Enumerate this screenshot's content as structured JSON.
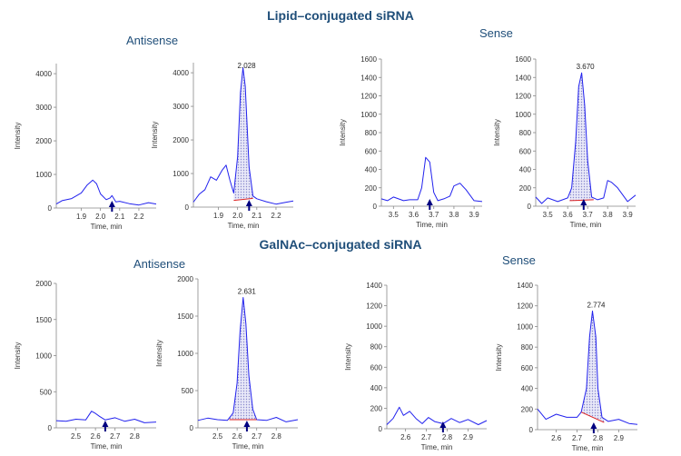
{
  "sections": [
    {
      "title": "Lipid–conjugated siRNA",
      "groups": [
        "Antisense",
        "Sense"
      ]
    },
    {
      "title": "GalNAc–conjugated siRNA",
      "groups": [
        "Antisense",
        "Sense"
      ]
    }
  ],
  "colors": {
    "trace": "#2222ee",
    "baseline": "#dd2222",
    "marker": "#000080",
    "title": "#1f4e79",
    "fill": "#8888cc"
  },
  "chart_data": [
    {
      "type": "line",
      "panel": "lipid-antisense-blank",
      "xlabel": "Time, min",
      "ylabel": "Intensity",
      "xlim": [
        1.77,
        2.29
      ],
      "ylim": [
        0,
        4300
      ],
      "xticks": [
        1.9,
        2.0,
        2.1,
        2.2
      ],
      "yticks": [
        0,
        1000,
        2000,
        3000,
        4000
      ],
      "marker_x": 2.06,
      "peak_label": "",
      "x": [
        1.77,
        1.8,
        1.85,
        1.9,
        1.93,
        1.96,
        1.98,
        2.0,
        2.03,
        2.05,
        2.06,
        2.08,
        2.1,
        2.15,
        2.2,
        2.25,
        2.29
      ],
      "y": [
        120,
        220,
        280,
        450,
        680,
        830,
        720,
        420,
        250,
        300,
        370,
        180,
        200,
        130,
        90,
        160,
        120
      ]
    },
    {
      "type": "line",
      "panel": "lipid-antisense-sample",
      "xlabel": "Time, min",
      "ylabel": "Intensity",
      "xlim": [
        1.77,
        2.29
      ],
      "ylim": [
        0,
        4300
      ],
      "xticks": [
        1.9,
        2.0,
        2.1,
        2.2
      ],
      "yticks": [
        0,
        1000,
        2000,
        3000,
        4000
      ],
      "marker_x": 2.06,
      "peak_label": "2.028",
      "shade": [
        1.98,
        2.08
      ],
      "baseline": [
        [
          1.98,
          200
        ],
        [
          2.08,
          260
        ]
      ],
      "x": [
        1.77,
        1.8,
        1.83,
        1.86,
        1.89,
        1.92,
        1.94,
        1.96,
        1.98,
        2.0,
        2.015,
        2.028,
        2.04,
        2.06,
        2.08,
        2.1,
        2.15,
        2.2,
        2.25,
        2.29
      ],
      "y": [
        150,
        380,
        520,
        900,
        800,
        1100,
        1250,
        800,
        420,
        1500,
        3400,
        4150,
        3600,
        1200,
        330,
        250,
        160,
        90,
        140,
        180
      ]
    },
    {
      "type": "line",
      "panel": "lipid-sense-blank",
      "xlabel": "Time, min",
      "ylabel": "Intensity",
      "xlim": [
        3.44,
        3.94
      ],
      "ylim": [
        0,
        1600
      ],
      "xticks": [
        3.5,
        3.6,
        3.7,
        3.8,
        3.9
      ],
      "yticks": [
        0,
        200,
        400,
        600,
        800,
        1000,
        1200,
        1400,
        1600
      ],
      "marker_x": 3.68,
      "peak_label": "",
      "x": [
        3.44,
        3.47,
        3.5,
        3.55,
        3.58,
        3.62,
        3.64,
        3.66,
        3.68,
        3.7,
        3.72,
        3.75,
        3.78,
        3.8,
        3.83,
        3.86,
        3.9,
        3.94
      ],
      "y": [
        80,
        60,
        100,
        60,
        70,
        70,
        200,
        530,
        480,
        150,
        60,
        80,
        110,
        220,
        250,
        180,
        60,
        50
      ]
    },
    {
      "type": "line",
      "panel": "lipid-sense-sample",
      "xlabel": "Time, min",
      "ylabel": "Intensity",
      "xlim": [
        3.44,
        3.94
      ],
      "ylim": [
        0,
        1600
      ],
      "xticks": [
        3.5,
        3.6,
        3.7,
        3.8,
        3.9
      ],
      "yticks": [
        0,
        200,
        400,
        600,
        800,
        1000,
        1200,
        1400,
        1600
      ],
      "marker_x": 3.68,
      "peak_label": "3.670",
      "shade": [
        3.61,
        3.73
      ],
      "baseline": [
        [
          3.61,
          60
        ],
        [
          3.73,
          70
        ]
      ],
      "x": [
        3.44,
        3.47,
        3.5,
        3.55,
        3.6,
        3.62,
        3.64,
        3.655,
        3.67,
        3.685,
        3.7,
        3.72,
        3.75,
        3.78,
        3.8,
        3.82,
        3.85,
        3.9,
        3.94
      ],
      "y": [
        100,
        30,
        90,
        50,
        90,
        200,
        700,
        1300,
        1450,
        1100,
        500,
        100,
        70,
        90,
        280,
        260,
        200,
        50,
        120
      ]
    },
    {
      "type": "line",
      "panel": "galnac-antisense-blank",
      "xlabel": "Time, min",
      "ylabel": "Intensity",
      "xlim": [
        2.4,
        2.91
      ],
      "ylim": [
        0,
        2000
      ],
      "xticks": [
        2.5,
        2.6,
        2.7,
        2.8
      ],
      "yticks": [
        0,
        500,
        1000,
        1500,
        2000
      ],
      "marker_x": 2.65,
      "peak_label": "",
      "x": [
        2.4,
        2.45,
        2.5,
        2.55,
        2.58,
        2.6,
        2.62,
        2.65,
        2.7,
        2.75,
        2.8,
        2.85,
        2.91
      ],
      "y": [
        100,
        90,
        120,
        110,
        230,
        200,
        160,
        110,
        140,
        90,
        120,
        70,
        80
      ]
    },
    {
      "type": "line",
      "panel": "galnac-antisense-sample",
      "xlabel": "Time, min",
      "ylabel": "Intensity",
      "xlim": [
        2.4,
        2.91
      ],
      "ylim": [
        0,
        2000
      ],
      "xticks": [
        2.5,
        2.6,
        2.7,
        2.8
      ],
      "yticks": [
        0,
        500,
        1000,
        1500,
        2000
      ],
      "marker_x": 2.65,
      "peak_label": "2.631",
      "shade": [
        2.56,
        2.7
      ],
      "baseline": [
        [
          2.56,
          110
        ],
        [
          2.7,
          110
        ]
      ],
      "x": [
        2.4,
        2.45,
        2.5,
        2.55,
        2.58,
        2.6,
        2.615,
        2.631,
        2.645,
        2.66,
        2.68,
        2.7,
        2.75,
        2.8,
        2.85,
        2.91
      ],
      "y": [
        100,
        130,
        110,
        100,
        200,
        600,
        1300,
        1750,
        1400,
        700,
        250,
        110,
        100,
        140,
        80,
        110
      ]
    },
    {
      "type": "line",
      "panel": "galnac-sense-blank",
      "xlabel": "Time, min",
      "ylabel": "Intensity",
      "xlim": [
        2.51,
        2.99
      ],
      "ylim": [
        0,
        1400
      ],
      "xticks": [
        2.6,
        2.7,
        2.8,
        2.9
      ],
      "yticks": [
        0,
        200,
        400,
        600,
        800,
        1000,
        1200,
        1400
      ],
      "marker_x": 2.78,
      "peak_label": "",
      "x": [
        2.51,
        2.54,
        2.57,
        2.59,
        2.62,
        2.65,
        2.68,
        2.71,
        2.74,
        2.78,
        2.82,
        2.86,
        2.9,
        2.95,
        2.99
      ],
      "y": [
        40,
        100,
        210,
        130,
        170,
        100,
        50,
        110,
        70,
        50,
        100,
        60,
        90,
        40,
        80
      ]
    },
    {
      "type": "line",
      "panel": "galnac-sense-sample",
      "xlabel": "Time, min",
      "ylabel": "Intensity",
      "xlim": [
        2.51,
        2.99
      ],
      "ylim": [
        0,
        1400
      ],
      "xticks": [
        2.6,
        2.7,
        2.8,
        2.9
      ],
      "yticks": [
        0,
        200,
        400,
        600,
        800,
        1000,
        1200,
        1400
      ],
      "marker_x": 2.78,
      "peak_label": "2.774",
      "shade": [
        2.72,
        2.83
      ],
      "baseline": [
        [
          2.72,
          170
        ],
        [
          2.83,
          70
        ]
      ],
      "x": [
        2.51,
        2.55,
        2.6,
        2.65,
        2.7,
        2.72,
        2.745,
        2.76,
        2.774,
        2.79,
        2.8,
        2.82,
        2.85,
        2.9,
        2.95,
        2.99
      ],
      "y": [
        200,
        100,
        150,
        120,
        120,
        170,
        400,
        900,
        1150,
        900,
        400,
        120,
        80,
        100,
        60,
        50
      ]
    }
  ]
}
